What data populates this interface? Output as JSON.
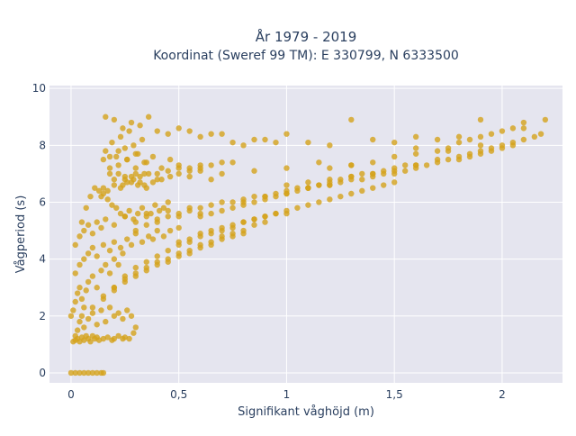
{
  "chart_data": {
    "type": "scatter",
    "title": "År 1979 - 2019",
    "subtitle": "Koordinat (Sweref 99 TM): E 330799, N 6333500",
    "xlabel": "Signifikant våghöjd (m)",
    "ylabel": "Vågperiod (s)",
    "xlim": [
      -0.1,
      2.28
    ],
    "ylim": [
      -0.35,
      10.1
    ],
    "x_ticks": [
      0,
      0.5,
      1,
      1.5,
      2
    ],
    "x_tick_labels": [
      "0",
      "0,5",
      "1",
      "1,5",
      "2"
    ],
    "y_ticks": [
      0,
      2,
      4,
      6,
      8,
      10
    ],
    "y_tick_labels": [
      "0",
      "2",
      "4",
      "6",
      "8",
      "10"
    ],
    "grid": true,
    "legend": "none",
    "marker_color": "#d4a21c",
    "plot_bg": "#e5e5ef",
    "series": [
      {
        "x": [
          0.0,
          0.02,
          0.04,
          0.06,
          0.08,
          0.1,
          0.12,
          0.14,
          0.15,
          0.01,
          0.02,
          0.03,
          0.04,
          0.05,
          0.06,
          0.07,
          0.08,
          0.09,
          0.1,
          0.11,
          0.12,
          0.13,
          0.15,
          0.17,
          0.19,
          0.2,
          0.22,
          0.24,
          0.25,
          0.27,
          0.29,
          0.3,
          0.0,
          0.01,
          0.02,
          0.03,
          0.04,
          0.05,
          0.06,
          0.07,
          0.08,
          0.1,
          0.12,
          0.14,
          0.16,
          0.18,
          0.2,
          0.22,
          0.24,
          0.02,
          0.04,
          0.06,
          0.08,
          0.1,
          0.12,
          0.15,
          0.18,
          0.2,
          0.23,
          0.26,
          0.28,
          0.3,
          0.33,
          0.36,
          0.38,
          0.4,
          0.43,
          0.46,
          0.5,
          0.02,
          0.04,
          0.06,
          0.08,
          0.1,
          0.12,
          0.14,
          0.16,
          0.2,
          0.25,
          0.3,
          0.35,
          0.4,
          0.45,
          0.5,
          0.55,
          0.6,
          0.1,
          0.15,
          0.2,
          0.25,
          0.3,
          0.35,
          0.4,
          0.45,
          0.5,
          0.55,
          0.6,
          0.65,
          0.7,
          0.75,
          0.8,
          0.15,
          0.2,
          0.25,
          0.3,
          0.35,
          0.4,
          0.45,
          0.5,
          0.55,
          0.6,
          0.65,
          0.7,
          0.75,
          0.8,
          0.85,
          0.9,
          0.2,
          0.25,
          0.3,
          0.35,
          0.4,
          0.45,
          0.5,
          0.55,
          0.6,
          0.65,
          0.7,
          0.75,
          0.8,
          0.85,
          0.9,
          0.95,
          1.0,
          0.3,
          0.35,
          0.4,
          0.45,
          0.5,
          0.55,
          0.6,
          0.65,
          0.7,
          0.75,
          0.8,
          0.85,
          0.9,
          0.95,
          1.0,
          1.05,
          1.1,
          1.15,
          1.2,
          0.5,
          0.55,
          0.6,
          0.65,
          0.7,
          0.75,
          0.8,
          0.85,
          0.9,
          0.95,
          1.0,
          1.05,
          1.1,
          1.15,
          1.2,
          1.25,
          1.3,
          1.35,
          1.4,
          1.45,
          1.5,
          0.6,
          0.65,
          0.7,
          0.75,
          0.8,
          0.85,
          0.9,
          0.95,
          1.0,
          1.05,
          1.1,
          1.15,
          1.2,
          1.25,
          1.3,
          1.35,
          1.4,
          1.45,
          1.5,
          1.55,
          1.6,
          0.8,
          0.9,
          1.0,
          1.1,
          1.2,
          1.25,
          1.3,
          1.35,
          1.4,
          1.45,
          1.5,
          1.55,
          1.6,
          1.65,
          1.7,
          1.75,
          1.8,
          1.85,
          1.9,
          1.95,
          2.0,
          2.05,
          1.0,
          1.1,
          1.2,
          1.3,
          1.4,
          1.5,
          1.6,
          1.7,
          1.8,
          1.85,
          1.9,
          1.95,
          2.0,
          2.05,
          2.1,
          2.15,
          2.18,
          1.2,
          1.3,
          1.4,
          1.5,
          1.6,
          1.7,
          1.75,
          1.8,
          1.85,
          1.9,
          1.95,
          2.0,
          2.05,
          2.1,
          2.2,
          0.15,
          0.18,
          0.2,
          0.22,
          0.24,
          0.26,
          0.28,
          0.3,
          0.32,
          0.34,
          0.16,
          0.19,
          0.21,
          0.23,
          0.25,
          0.27,
          0.29,
          0.31,
          0.33,
          0.35,
          0.14,
          0.17,
          0.2,
          0.23,
          0.26,
          0.29,
          0.32,
          0.36,
          0.4,
          0.45,
          0.5,
          0.55,
          0.6,
          0.65,
          0.7,
          0.75,
          0.15,
          0.18,
          0.22,
          0.25,
          0.28,
          0.31,
          0.34,
          0.38,
          0.42,
          0.46,
          0.5,
          0.55,
          0.6,
          0.16,
          0.2,
          0.24,
          0.28,
          0.32,
          0.36,
          0.4,
          0.45,
          0.5,
          0.55,
          0.6,
          0.65,
          0.7,
          0.75,
          0.8,
          0.85,
          0.9,
          0.95,
          1.0,
          1.1,
          1.2,
          1.3,
          1.4,
          1.5,
          1.6,
          1.7,
          1.8,
          1.9,
          0.18,
          0.22,
          0.26,
          0.3,
          0.34,
          0.38,
          0.42,
          0.46,
          0.5,
          0.25,
          0.3,
          0.35,
          0.4,
          0.55,
          0.6,
          0.65,
          0.7,
          0.85,
          1.0,
          1.15,
          1.3,
          1.6,
          1.75,
          1.9,
          2.1,
          0.02,
          0.03,
          0.04,
          0.05,
          0.06,
          0.08,
          0.1,
          0.12,
          0.14,
          0.16,
          0.18,
          0.2,
          0.22,
          0.24,
          0.26,
          0.28,
          0.05,
          0.07,
          0.09,
          0.11,
          0.13,
          0.15,
          0.17,
          0.19,
          0.21,
          0.23,
          0.25,
          0.27,
          0.29,
          0.31,
          0.33,
          0.35,
          0.37,
          0.39,
          0.41,
          0.43,
          0.45
        ],
        "y": [
          0,
          0,
          0,
          0,
          0,
          0,
          0,
          0,
          0,
          1.1,
          1.15,
          1.2,
          1.1,
          1.25,
          1.15,
          1.3,
          1.2,
          1.1,
          1.3,
          1.2,
          1.25,
          1.15,
          1.2,
          1.25,
          1.15,
          1.2,
          1.3,
          1.2,
          1.25,
          1.2,
          1.4,
          1.6,
          2.0,
          2.2,
          2.5,
          2.8,
          3.0,
          2.6,
          2.3,
          2.9,
          3.2,
          3.4,
          3.0,
          3.6,
          3.8,
          3.5,
          4.0,
          3.8,
          4.2,
          3.5,
          3.8,
          4.0,
          4.2,
          4.4,
          4.1,
          4.5,
          4.3,
          4.6,
          4.4,
          4.7,
          4.5,
          4.9,
          4.6,
          4.8,
          4.7,
          5.0,
          4.8,
          5.0,
          5.1,
          4.5,
          4.8,
          5.0,
          5.2,
          4.9,
          5.3,
          5.1,
          5.4,
          5.2,
          5.5,
          5.3,
          5.6,
          5.4,
          5.7,
          5.5,
          5.8,
          5.6,
          2.3,
          2.7,
          3.0,
          3.2,
          3.4,
          3.6,
          3.8,
          3.9,
          4.1,
          4.2,
          4.4,
          4.5,
          4.7,
          4.8,
          4.9,
          2.6,
          2.9,
          3.3,
          3.5,
          3.7,
          3.9,
          4.0,
          4.2,
          4.3,
          4.5,
          4.6,
          4.8,
          4.9,
          5.0,
          5.2,
          5.3,
          3.0,
          3.4,
          3.7,
          3.9,
          4.1,
          4.3,
          4.5,
          4.6,
          4.8,
          4.9,
          5.0,
          5.1,
          5.3,
          5.4,
          5.5,
          5.6,
          5.7,
          5.0,
          5.2,
          5.3,
          5.5,
          5.6,
          5.7,
          5.8,
          5.9,
          6.0,
          6.0,
          6.1,
          6.2,
          6.2,
          6.3,
          6.4,
          6.5,
          6.5,
          6.6,
          6.6,
          4.6,
          4.7,
          4.9,
          5.0,
          5.1,
          5.2,
          5.3,
          5.4,
          5.5,
          5.6,
          5.6,
          5.8,
          5.9,
          6.0,
          6.1,
          6.2,
          6.3,
          6.4,
          6.5,
          6.6,
          6.7,
          5.5,
          5.6,
          5.7,
          5.8,
          5.9,
          6.0,
          6.1,
          6.2,
          6.3,
          6.4,
          6.5,
          6.6,
          6.7,
          6.8,
          6.9,
          7.0,
          7.0,
          7.1,
          7.2,
          7.3,
          7.3,
          6.0,
          6.2,
          6.3,
          6.5,
          6.6,
          6.7,
          6.8,
          6.8,
          6.9,
          7.0,
          7.0,
          7.1,
          7.2,
          7.3,
          7.4,
          7.5,
          7.5,
          7.6,
          7.7,
          7.8,
          7.9,
          8.0,
          6.6,
          6.7,
          6.8,
          6.9,
          7.0,
          7.1,
          7.3,
          7.5,
          7.6,
          7.7,
          7.8,
          7.9,
          8.0,
          8.1,
          8.2,
          8.3,
          8.4,
          7.2,
          7.3,
          7.4,
          7.6,
          7.7,
          7.8,
          7.9,
          8.1,
          8.2,
          8.3,
          8.4,
          8.5,
          8.6,
          8.8,
          8.9,
          6.5,
          7.0,
          6.8,
          7.3,
          6.6,
          7.5,
          6.9,
          7.2,
          6.7,
          7.0,
          7.8,
          8.1,
          7.6,
          8.3,
          7.9,
          8.5,
          8.0,
          7.7,
          8.2,
          7.4,
          6.2,
          6.4,
          6.6,
          6.5,
          6.7,
          6.8,
          6.9,
          7.0,
          7.0,
          7.1,
          7.2,
          7.2,
          7.3,
          7.3,
          7.4,
          7.4,
          7.5,
          7.2,
          7.0,
          6.8,
          6.7,
          6.6,
          6.6,
          6.7,
          6.8,
          6.9,
          7.0,
          7.1,
          7.2,
          9.0,
          8.9,
          8.6,
          8.8,
          8.7,
          9.0,
          8.5,
          8.4,
          8.6,
          8.5,
          8.3,
          8.4,
          8.4,
          8.1,
          8.0,
          8.2,
          8.2,
          8.1,
          8.4,
          8.1,
          8.0,
          8.9,
          8.2,
          8.1,
          8.3,
          8.2,
          8.3,
          8.9,
          7.6,
          7.8,
          7.5,
          7.7,
          7.4,
          7.6,
          7.2,
          7.5,
          7.3,
          6.9,
          7.0,
          6.5,
          6.8,
          6.9,
          7.1,
          6.8,
          7.0,
          7.1,
          7.2,
          7.4,
          7.3,
          7.9,
          7.8,
          8.0,
          8.6,
          1.3,
          1.5,
          1.8,
          2.0,
          1.6,
          1.9,
          2.1,
          1.7,
          2.2,
          1.8,
          2.3,
          2.0,
          2.1,
          1.9,
          2.2,
          2.0,
          5.3,
          5.8,
          6.2,
          6.5,
          6.4,
          6.3,
          6.1,
          5.9,
          5.8,
          5.6,
          5.5,
          5.7,
          5.4,
          5.6,
          5.8,
          5.5,
          5.6,
          5.9,
          5.7,
          5.8,
          6.0
        ]
      }
    ]
  }
}
